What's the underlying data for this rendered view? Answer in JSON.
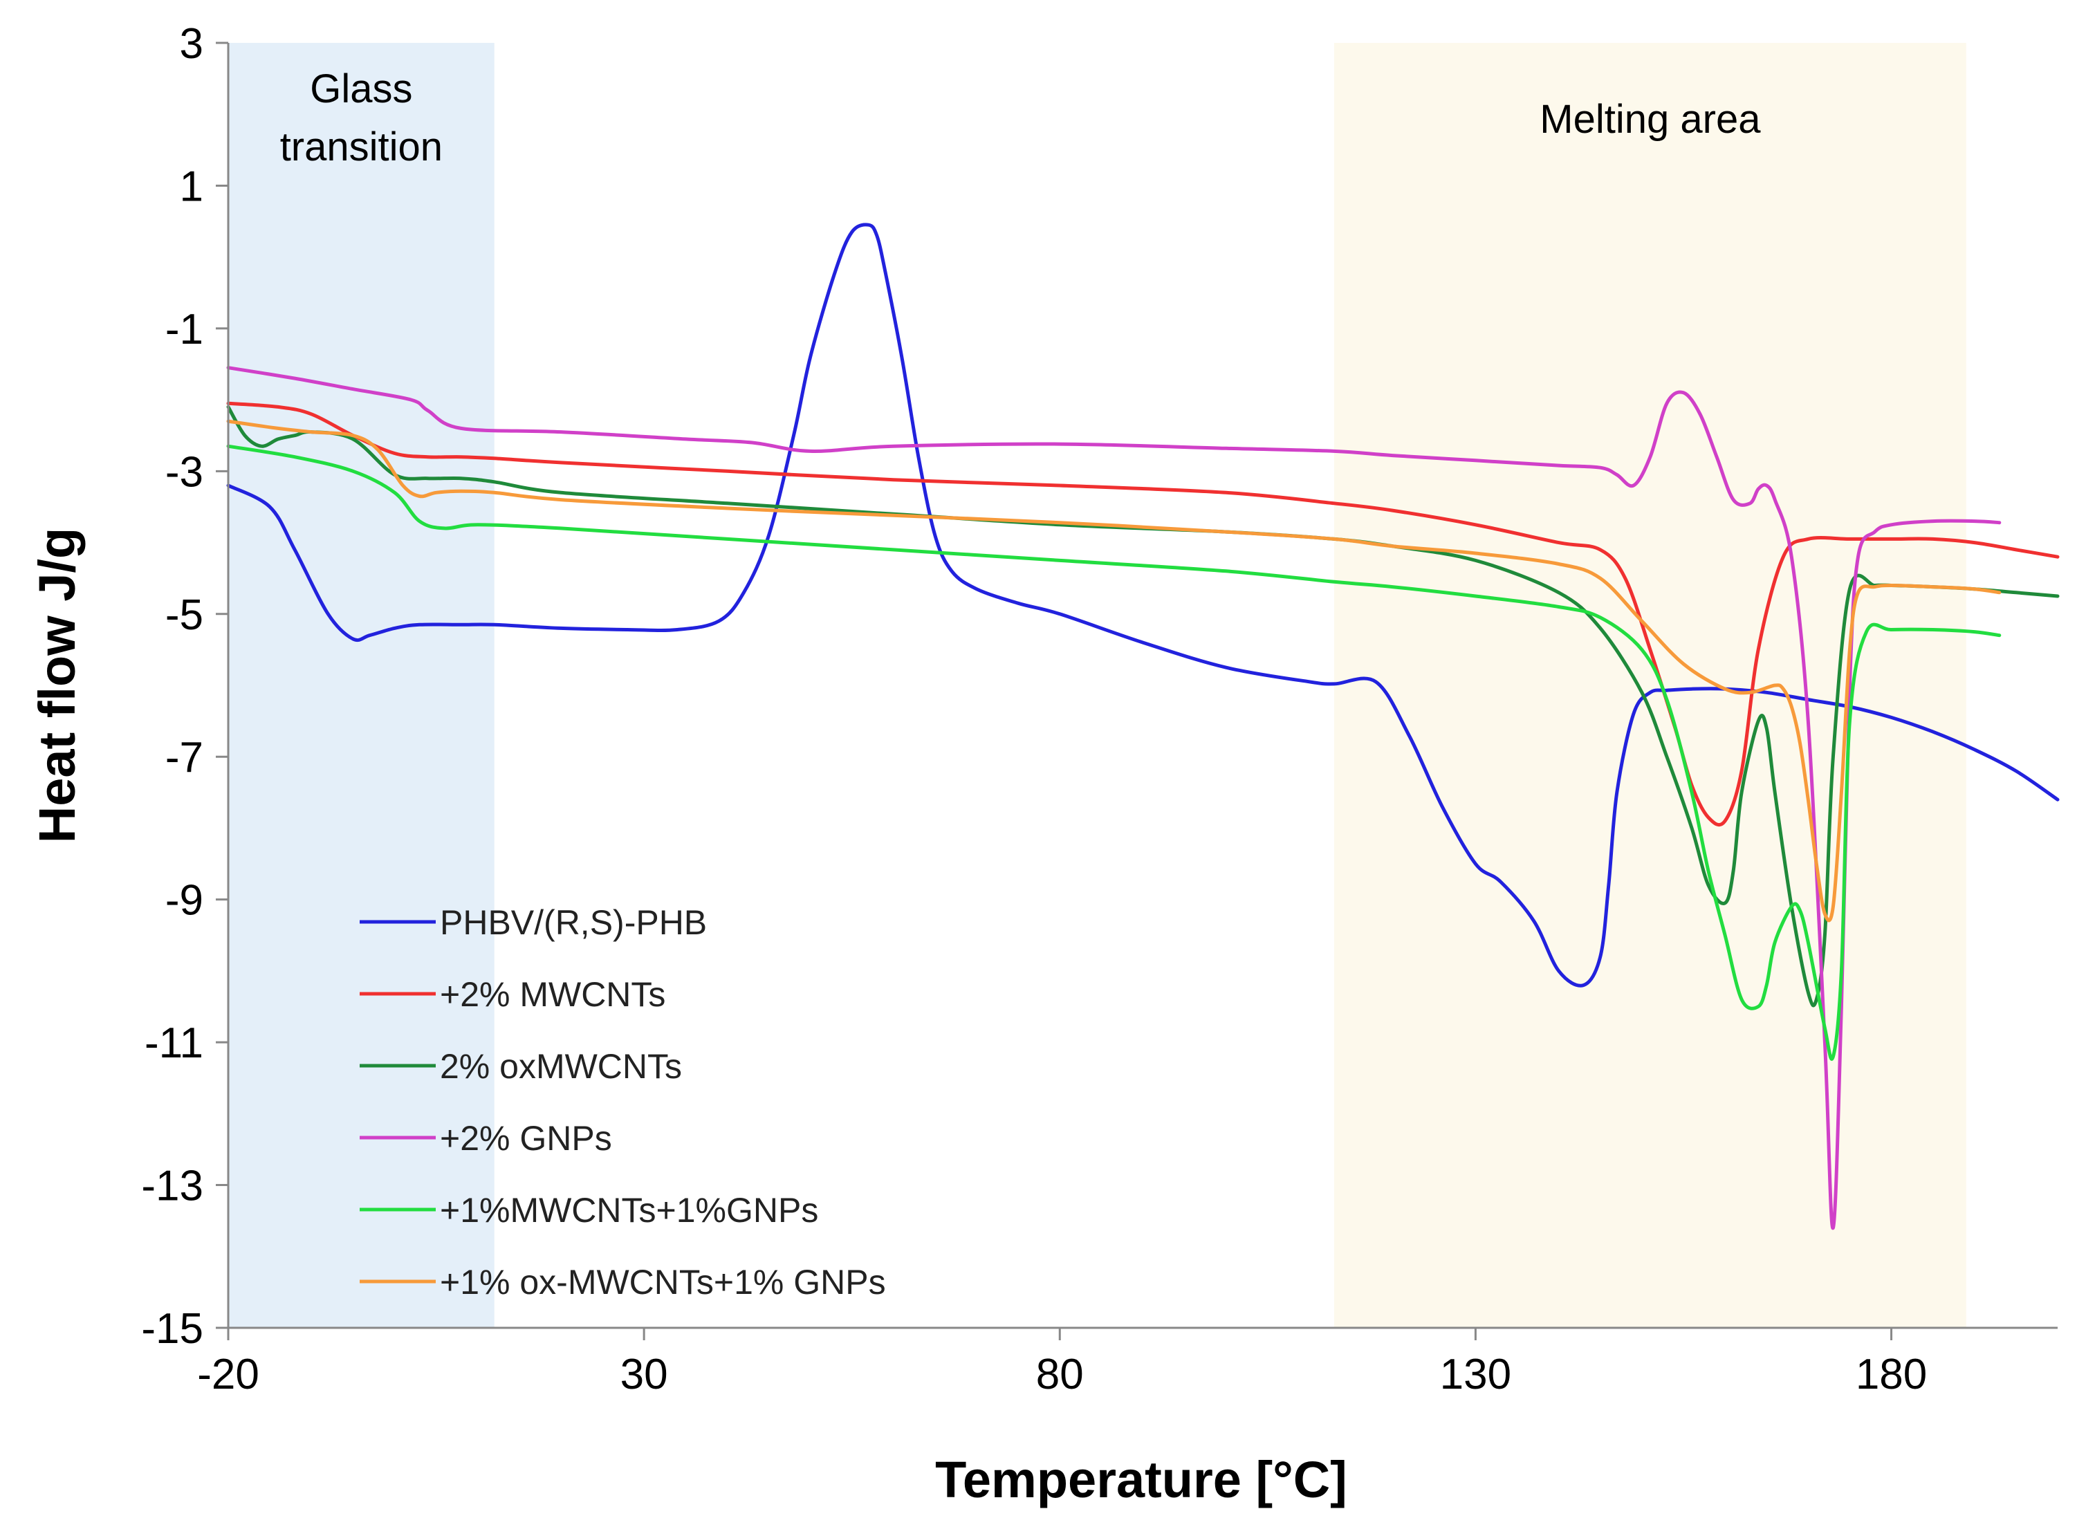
{
  "chart_data": {
    "type": "line",
    "title": "",
    "xlabel": "Temperature [°C]",
    "ylabel": "Heat flow J/g",
    "xlim": [
      -20,
      200
    ],
    "ylim": [
      -15,
      3
    ],
    "xticks": [
      -20,
      30,
      80,
      130,
      180
    ],
    "yticks": [
      3,
      1,
      -1,
      -3,
      -5,
      -7,
      -9,
      -11,
      -13,
      -15
    ],
    "grid": false,
    "legend_position": "bottom-left",
    "regions": [
      {
        "name": "glass-transition-region",
        "label_lines": [
          "Glass",
          "transition"
        ],
        "x_range": [
          -20,
          12
        ],
        "color": "#e4eff9"
      },
      {
        "name": "melting-area-region",
        "label_lines": [
          "Melting area"
        ],
        "x_range": [
          113,
          189
        ],
        "color": "#fdf9ec"
      }
    ],
    "series": [
      {
        "name": "PHBV/(R,S)-PHB",
        "color": "#2222dd",
        "x": [
          -20,
          -15,
          -12,
          -8,
          -5,
          -3,
          0,
          3,
          8,
          12,
          20,
          28,
          34,
          39,
          42,
          45,
          48,
          50,
          53,
          55,
          57,
          58,
          59,
          61,
          63,
          65,
          67,
          70,
          75,
          80,
          90,
          100,
          110,
          113,
          118,
          122,
          126,
          130,
          133,
          137,
          140,
          143,
          145,
          146,
          147,
          149,
          151,
          153,
          156,
          160,
          165,
          170,
          175,
          180,
          185,
          190,
          195,
          200
        ],
        "y": [
          -3.2,
          -3.5,
          -4.1,
          -5.0,
          -5.35,
          -5.3,
          -5.2,
          -5.15,
          -5.15,
          -5.15,
          -5.2,
          -5.22,
          -5.22,
          -5.1,
          -4.7,
          -3.9,
          -2.5,
          -1.4,
          -0.2,
          0.35,
          0.45,
          0.3,
          -0.2,
          -1.4,
          -2.8,
          -3.9,
          -4.4,
          -4.65,
          -4.85,
          -5.0,
          -5.4,
          -5.75,
          -5.95,
          -5.98,
          -5.95,
          -6.7,
          -7.7,
          -8.5,
          -8.75,
          -9.3,
          -10.0,
          -10.2,
          -9.8,
          -8.8,
          -7.5,
          -6.4,
          -6.1,
          -6.07,
          -6.05,
          -6.05,
          -6.1,
          -6.2,
          -6.3,
          -6.45,
          -6.65,
          -6.9,
          -7.2,
          -7.6
        ]
      },
      {
        "name": "+2% MWCNTs",
        "color": "#f03030",
        "x": [
          -20,
          -14,
          -10,
          -5,
          0,
          4,
          8,
          12,
          20,
          40,
          60,
          80,
          100,
          113,
          120,
          130,
          140,
          145,
          148,
          151,
          154,
          156,
          158,
          160,
          162,
          164,
          167,
          170,
          175,
          180,
          185,
          190,
          195,
          200
        ],
        "y": [
          -2.05,
          -2.1,
          -2.2,
          -2.5,
          -2.75,
          -2.8,
          -2.8,
          -2.82,
          -2.88,
          -3.0,
          -3.12,
          -3.2,
          -3.3,
          -3.45,
          -3.55,
          -3.75,
          -4.0,
          -4.1,
          -4.5,
          -5.5,
          -6.6,
          -7.4,
          -7.85,
          -7.9,
          -7.2,
          -5.5,
          -4.2,
          -3.95,
          -3.95,
          -3.95,
          -3.95,
          -4.0,
          -4.1,
          -4.2
        ]
      },
      {
        "name": "2% oxMWCNTs",
        "color": "#1f8a3a",
        "x": [
          -20,
          -18,
          -16,
          -14,
          -12,
          -10,
          -5,
          0,
          4,
          8,
          12,
          20,
          40,
          60,
          80,
          100,
          113,
          120,
          130,
          140,
          145,
          150,
          153,
          156,
          158,
          160,
          161,
          162,
          164,
          165,
          166,
          168,
          170,
          171,
          172,
          173,
          175,
          178,
          180,
          185,
          190,
          195,
          200
        ],
        "y": [
          -2.1,
          -2.5,
          -2.65,
          -2.55,
          -2.5,
          -2.45,
          -2.55,
          -3.05,
          -3.1,
          -3.1,
          -3.15,
          -3.3,
          -3.45,
          -3.6,
          -3.75,
          -3.85,
          -3.95,
          -4.05,
          -4.25,
          -4.7,
          -5.2,
          -6.1,
          -7.0,
          -8.0,
          -8.8,
          -9.05,
          -8.6,
          -7.5,
          -6.5,
          -6.6,
          -7.5,
          -9.1,
          -10.3,
          -10.4,
          -9.5,
          -7.0,
          -4.65,
          -4.6,
          -4.6,
          -4.62,
          -4.65,
          -4.7,
          -4.75
        ]
      },
      {
        "name": "+2% GNPs",
        "color": "#d040c8",
        "x": [
          -20,
          -12,
          -5,
          2,
          4,
          8,
          20,
          35,
          43,
          50,
          60,
          80,
          100,
          113,
          120,
          130,
          140,
          145,
          147,
          149,
          151,
          153,
          155,
          157,
          159,
          161,
          163,
          164,
          165,
          166,
          168,
          170,
          172,
          173,
          174,
          175,
          176,
          178,
          180,
          185,
          190,
          193
        ],
        "y": [
          -1.55,
          -1.7,
          -1.85,
          -2.0,
          -2.15,
          -2.4,
          -2.45,
          -2.55,
          -2.6,
          -2.72,
          -2.65,
          -2.62,
          -2.68,
          -2.72,
          -2.78,
          -2.85,
          -2.92,
          -2.95,
          -3.05,
          -3.2,
          -2.8,
          -2.05,
          -1.9,
          -2.2,
          -2.8,
          -3.4,
          -3.45,
          -3.25,
          -3.2,
          -3.4,
          -4.2,
          -6.5,
          -11.0,
          -13.6,
          -10.5,
          -6.0,
          -4.2,
          -3.85,
          -3.75,
          -3.7,
          -3.7,
          -3.72
        ]
      },
      {
        "name": "+1%MWCNTs+1%GNPs",
        "color": "#22dd40",
        "x": [
          -20,
          -12,
          -5,
          0,
          3,
          6,
          10,
          20,
          40,
          60,
          80,
          100,
          113,
          120,
          130,
          140,
          145,
          150,
          153,
          156,
          158,
          160,
          162,
          164,
          165,
          166,
          168,
          169,
          170,
          172,
          173,
          174,
          175,
          177,
          180,
          185,
          190,
          193
        ],
        "y": [
          -2.65,
          -2.8,
          -3.0,
          -3.3,
          -3.7,
          -3.8,
          -3.75,
          -3.8,
          -3.95,
          -4.1,
          -4.25,
          -4.4,
          -4.55,
          -4.62,
          -4.75,
          -4.9,
          -5.05,
          -5.5,
          -6.2,
          -7.5,
          -8.6,
          -9.5,
          -10.4,
          -10.5,
          -10.2,
          -9.6,
          -9.1,
          -9.15,
          -9.6,
          -10.8,
          -11.2,
          -10.0,
          -6.5,
          -5.25,
          -5.22,
          -5.22,
          -5.25,
          -5.3
        ]
      },
      {
        "name": "+1% ox-MWCNTs+1% GNPs",
        "color": "#f79a3a",
        "x": [
          -20,
          -14,
          -10,
          -5,
          -2,
          1,
          3,
          5,
          8,
          12,
          20,
          40,
          60,
          80,
          100,
          113,
          120,
          130,
          140,
          145,
          150,
          155,
          160,
          163,
          166,
          167,
          168,
          169,
          170,
          171,
          172,
          173,
          174,
          175,
          176,
          178,
          180,
          185,
          190,
          193
        ],
        "y": [
          -2.3,
          -2.4,
          -2.45,
          -2.5,
          -2.7,
          -3.2,
          -3.35,
          -3.3,
          -3.28,
          -3.3,
          -3.4,
          -3.52,
          -3.62,
          -3.72,
          -3.85,
          -3.95,
          -4.05,
          -4.15,
          -4.3,
          -4.5,
          -5.1,
          -5.7,
          -6.05,
          -6.1,
          -6.0,
          -6.05,
          -6.3,
          -6.8,
          -7.6,
          -8.5,
          -9.2,
          -9.1,
          -7.5,
          -5.5,
          -4.7,
          -4.62,
          -4.6,
          -4.62,
          -4.65,
          -4.7
        ]
      }
    ]
  }
}
